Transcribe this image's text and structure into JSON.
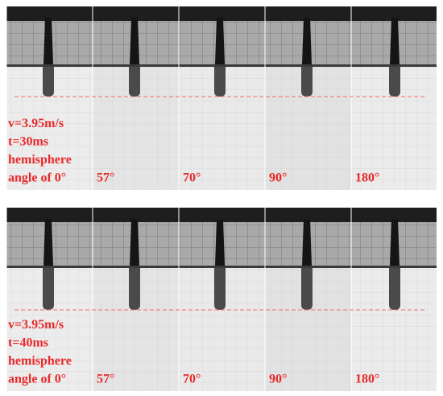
{
  "panels": [
    {
      "lines": [
        "v=3.95m/s",
        "t=30ms",
        "hemisphere",
        "angle of 0°"
      ],
      "angles": [
        "57°",
        "70°",
        "90°",
        "180°"
      ]
    },
    {
      "lines": [
        "v=3.95m/s",
        "t=40ms",
        "hemisphere",
        "angle of 0°"
      ],
      "angles": [
        "57°",
        "70°",
        "90°",
        "180°"
      ]
    }
  ]
}
